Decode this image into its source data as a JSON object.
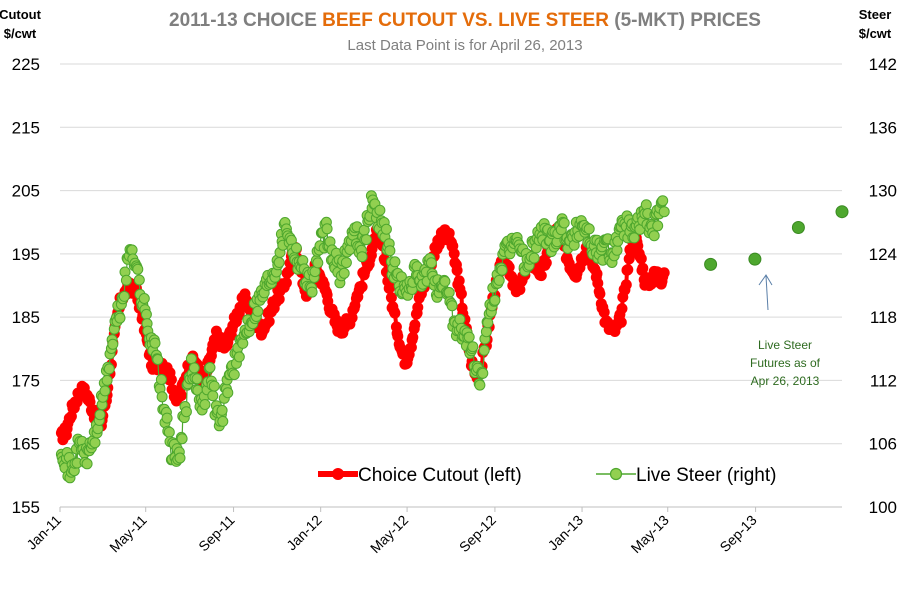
{
  "chart_data": {
    "type": "line",
    "title_parts": [
      {
        "text": "2011-13 CHOICE ",
        "color": "#7f7f7f"
      },
      {
        "text": "BEEF CUTOUT VS. LIVE STEER",
        "color": "#e46c0a"
      },
      {
        "text": " (5-MKT) PRICES",
        "color": "#7f7f7f"
      }
    ],
    "subtitle": "Last Data Point is for April 26, 2013",
    "ylabel_left_line1": "Cutout",
    "ylabel_left_line2": "$/cwt",
    "ylabel_right_line1": "Steer",
    "ylabel_right_line2": "$/cwt",
    "y_left": {
      "min": 155,
      "max": 225,
      "ticks": [
        "225",
        "215",
        "205",
        "195",
        "185",
        "175",
        "165",
        "155"
      ]
    },
    "y_right": {
      "min": 100,
      "max": 142,
      "ticks": [
        "142",
        "136",
        "130",
        "124",
        "118",
        "112",
        "106",
        "100"
      ]
    },
    "x_domain": {
      "start": "2011-01-01",
      "end": "2013-12-31"
    },
    "x_ticks": [
      {
        "label": "Jan-11",
        "date": "2011-01-01"
      },
      {
        "label": "May-11",
        "date": "2011-05-01"
      },
      {
        "label": "Sep-11",
        "date": "2011-09-01"
      },
      {
        "label": "Jan-12",
        "date": "2012-01-01"
      },
      {
        "label": "May-12",
        "date": "2012-05-01"
      },
      {
        "label": "Sep-12",
        "date": "2012-09-01"
      },
      {
        "label": "Jan-13",
        "date": "2013-01-01"
      },
      {
        "label": "May-13",
        "date": "2013-05-01"
      },
      {
        "label": "Sep-13",
        "date": "2013-09-01"
      }
    ],
    "grid": true,
    "legend_position": "bottom-center",
    "series": [
      {
        "name": "Choice Cutout (left)",
        "axis": "left",
        "color": "#ff0000",
        "points": [
          [
            "2011-01-03",
            166
          ],
          [
            "2011-01-10",
            167
          ],
          [
            "2011-01-17",
            170
          ],
          [
            "2011-01-24",
            172
          ],
          [
            "2011-01-31",
            173.5
          ],
          [
            "2011-02-07",
            173
          ],
          [
            "2011-02-14",
            171
          ],
          [
            "2011-02-21",
            169
          ],
          [
            "2011-02-28",
            168
          ],
          [
            "2011-03-07",
            172
          ],
          [
            "2011-03-14",
            178
          ],
          [
            "2011-03-21",
            184
          ],
          [
            "2011-03-28",
            188
          ],
          [
            "2011-04-04",
            189
          ],
          [
            "2011-04-11",
            190
          ],
          [
            "2011-04-18",
            189
          ],
          [
            "2011-04-25",
            186
          ],
          [
            "2011-05-02",
            182
          ],
          [
            "2011-05-09",
            178
          ],
          [
            "2011-05-16",
            177
          ],
          [
            "2011-05-23",
            178
          ],
          [
            "2011-05-30",
            177
          ],
          [
            "2011-06-06",
            175
          ],
          [
            "2011-06-13",
            172
          ],
          [
            "2011-06-20",
            173
          ],
          [
            "2011-06-27",
            176
          ],
          [
            "2011-07-04",
            178
          ],
          [
            "2011-07-11",
            178
          ],
          [
            "2011-07-18",
            175
          ],
          [
            "2011-07-25",
            176
          ],
          [
            "2011-08-01",
            179
          ],
          [
            "2011-08-08",
            182
          ],
          [
            "2011-08-15",
            181
          ],
          [
            "2011-08-22",
            180
          ],
          [
            "2011-08-29",
            183
          ],
          [
            "2011-09-05",
            185
          ],
          [
            "2011-09-12",
            187
          ],
          [
            "2011-09-19",
            188
          ],
          [
            "2011-09-26",
            186
          ],
          [
            "2011-10-03",
            184
          ],
          [
            "2011-10-10",
            183
          ],
          [
            "2011-10-17",
            184
          ],
          [
            "2011-10-24",
            186
          ],
          [
            "2011-10-31",
            188
          ],
          [
            "2011-11-07",
            189
          ],
          [
            "2011-11-14",
            191
          ],
          [
            "2011-11-21",
            194
          ],
          [
            "2011-11-28",
            196
          ],
          [
            "2011-12-05",
            192
          ],
          [
            "2011-12-12",
            189
          ],
          [
            "2011-12-19",
            191
          ],
          [
            "2011-12-26",
            193
          ],
          [
            "2012-01-02",
            191
          ],
          [
            "2012-01-09",
            189
          ],
          [
            "2012-01-16",
            186
          ],
          [
            "2012-01-23",
            184
          ],
          [
            "2012-01-30",
            183
          ],
          [
            "2012-02-06",
            184
          ],
          [
            "2012-02-13",
            185
          ],
          [
            "2012-02-20",
            188
          ],
          [
            "2012-02-27",
            190
          ],
          [
            "2012-03-05",
            193
          ],
          [
            "2012-03-12",
            195
          ],
          [
            "2012-03-19",
            198
          ],
          [
            "2012-03-26",
            197
          ],
          [
            "2012-04-02",
            193
          ],
          [
            "2012-04-09",
            188
          ],
          [
            "2012-04-16",
            184
          ],
          [
            "2012-04-23",
            180
          ],
          [
            "2012-04-30",
            178
          ],
          [
            "2012-05-07",
            181
          ],
          [
            "2012-05-14",
            185
          ],
          [
            "2012-05-21",
            189
          ],
          [
            "2012-05-28",
            191
          ],
          [
            "2012-06-04",
            194
          ],
          [
            "2012-06-11",
            196
          ],
          [
            "2012-06-18",
            198
          ],
          [
            "2012-06-25",
            198
          ],
          [
            "2012-07-02",
            197
          ],
          [
            "2012-07-09",
            193
          ],
          [
            "2012-07-16",
            188
          ],
          [
            "2012-07-23",
            183
          ],
          [
            "2012-07-30",
            178
          ],
          [
            "2012-08-06",
            176
          ],
          [
            "2012-08-13",
            177
          ],
          [
            "2012-08-20",
            181
          ],
          [
            "2012-08-27",
            186
          ],
          [
            "2012-09-03",
            190
          ],
          [
            "2012-09-10",
            193
          ],
          [
            "2012-09-17",
            194
          ],
          [
            "2012-09-24",
            192
          ],
          [
            "2012-10-01",
            189
          ],
          [
            "2012-10-08",
            190
          ],
          [
            "2012-10-15",
            193
          ],
          [
            "2012-10-22",
            194
          ],
          [
            "2012-10-29",
            193
          ],
          [
            "2012-11-05",
            192
          ],
          [
            "2012-11-12",
            194
          ],
          [
            "2012-11-19",
            197
          ],
          [
            "2012-11-26",
            199
          ],
          [
            "2012-12-03",
            197
          ],
          [
            "2012-12-10",
            195
          ],
          [
            "2012-12-17",
            193
          ],
          [
            "2012-12-24",
            192
          ],
          [
            "2012-12-31",
            194
          ],
          [
            "2013-01-07",
            196
          ],
          [
            "2013-01-14",
            194
          ],
          [
            "2013-01-21",
            192
          ],
          [
            "2013-01-28",
            188
          ],
          [
            "2013-02-04",
            184
          ],
          [
            "2013-02-11",
            183
          ],
          [
            "2013-02-18",
            183
          ],
          [
            "2013-02-25",
            185
          ],
          [
            "2013-03-04",
            191
          ],
          [
            "2013-03-11",
            196
          ],
          [
            "2013-03-18",
            197
          ],
          [
            "2013-03-25",
            194
          ],
          [
            "2013-04-01",
            190
          ],
          [
            "2013-04-08",
            191
          ],
          [
            "2013-04-15",
            192
          ],
          [
            "2013-04-22",
            191
          ],
          [
            "2013-04-26",
            192
          ]
        ]
      },
      {
        "name": "Live Steer (right)",
        "axis": "right",
        "color": "#92d050",
        "points": [
          [
            "2011-01-03",
            106
          ],
          [
            "2011-01-10",
            104.5
          ],
          [
            "2011-01-17",
            103
          ],
          [
            "2011-01-24",
            105
          ],
          [
            "2011-01-31",
            106
          ],
          [
            "2011-02-07",
            104.5
          ],
          [
            "2011-02-14",
            106
          ],
          [
            "2011-02-21",
            107
          ],
          [
            "2011-02-28",
            109.5
          ],
          [
            "2011-03-07",
            112
          ],
          [
            "2011-03-14",
            115
          ],
          [
            "2011-03-21",
            117.5
          ],
          [
            "2011-03-28",
            119
          ],
          [
            "2011-04-04",
            122
          ],
          [
            "2011-04-11",
            125
          ],
          [
            "2011-04-18",
            123
          ],
          [
            "2011-04-25",
            120
          ],
          [
            "2011-05-02",
            118
          ],
          [
            "2011-05-09",
            116
          ],
          [
            "2011-05-16",
            114.5
          ],
          [
            "2011-05-23",
            111
          ],
          [
            "2011-05-30",
            108
          ],
          [
            "2011-06-06",
            105.5
          ],
          [
            "2011-06-13",
            104.5
          ],
          [
            "2011-06-20",
            106
          ],
          [
            "2011-06-27",
            110
          ],
          [
            "2011-07-04",
            113
          ],
          [
            "2011-07-11",
            112
          ],
          [
            "2011-07-18",
            110
          ],
          [
            "2011-07-25",
            111
          ],
          [
            "2011-08-01",
            113
          ],
          [
            "2011-08-08",
            109
          ],
          [
            "2011-08-15",
            108
          ],
          [
            "2011-08-22",
            111
          ],
          [
            "2011-08-29",
            113
          ],
          [
            "2011-09-05",
            114
          ],
          [
            "2011-09-12",
            115
          ],
          [
            "2011-09-19",
            117
          ],
          [
            "2011-09-26",
            118
          ],
          [
            "2011-10-03",
            119
          ],
          [
            "2011-10-10",
            120
          ],
          [
            "2011-10-17",
            121
          ],
          [
            "2011-10-24",
            122
          ],
          [
            "2011-10-31",
            123
          ],
          [
            "2011-11-07",
            125
          ],
          [
            "2011-11-14",
            127
          ],
          [
            "2011-11-21",
            125
          ],
          [
            "2011-11-28",
            124
          ],
          [
            "2011-12-05",
            123
          ],
          [
            "2011-12-12",
            122
          ],
          [
            "2011-12-19",
            121
          ],
          [
            "2011-12-26",
            123
          ],
          [
            "2012-01-02",
            125
          ],
          [
            "2012-01-09",
            126
          ],
          [
            "2012-01-16",
            124
          ],
          [
            "2012-01-23",
            123
          ],
          [
            "2012-01-30",
            122
          ],
          [
            "2012-02-06",
            124
          ],
          [
            "2012-02-13",
            125.5
          ],
          [
            "2012-02-20",
            126
          ],
          [
            "2012-02-27",
            124.5
          ],
          [
            "2012-03-05",
            126
          ],
          [
            "2012-03-12",
            129
          ],
          [
            "2012-03-19",
            128
          ],
          [
            "2012-03-26",
            127
          ],
          [
            "2012-04-02",
            126
          ],
          [
            "2012-04-09",
            123
          ],
          [
            "2012-04-16",
            122
          ],
          [
            "2012-04-23",
            121
          ],
          [
            "2012-04-30",
            120
          ],
          [
            "2012-05-07",
            121.5
          ],
          [
            "2012-05-14",
            122
          ],
          [
            "2012-05-21",
            121
          ],
          [
            "2012-05-28",
            122
          ],
          [
            "2012-06-04",
            123
          ],
          [
            "2012-06-11",
            121
          ],
          [
            "2012-06-18",
            120
          ],
          [
            "2012-06-25",
            121
          ],
          [
            "2012-07-02",
            119
          ],
          [
            "2012-07-09",
            117
          ],
          [
            "2012-07-16",
            117
          ],
          [
            "2012-07-23",
            116
          ],
          [
            "2012-07-30",
            115
          ],
          [
            "2012-08-06",
            113
          ],
          [
            "2012-08-13",
            112
          ],
          [
            "2012-08-20",
            116
          ],
          [
            "2012-08-27",
            119
          ],
          [
            "2012-09-03",
            121
          ],
          [
            "2012-09-10",
            123
          ],
          [
            "2012-09-17",
            124
          ],
          [
            "2012-09-24",
            124.5
          ],
          [
            "2012-10-01",
            126
          ],
          [
            "2012-10-08",
            124
          ],
          [
            "2012-10-15",
            123
          ],
          [
            "2012-10-22",
            124
          ],
          [
            "2012-10-29",
            125
          ],
          [
            "2012-11-05",
            126
          ],
          [
            "2012-11-12",
            126
          ],
          [
            "2012-11-19",
            125
          ],
          [
            "2012-11-26",
            126
          ],
          [
            "2012-12-03",
            127
          ],
          [
            "2012-12-10",
            126
          ],
          [
            "2012-12-17",
            125
          ],
          [
            "2012-12-24",
            126
          ],
          [
            "2012-12-31",
            127
          ],
          [
            "2013-01-07",
            126.5
          ],
          [
            "2013-01-14",
            125
          ],
          [
            "2013-01-21",
            124.5
          ],
          [
            "2013-01-28",
            124
          ],
          [
            "2013-02-04",
            125
          ],
          [
            "2013-02-11",
            124
          ],
          [
            "2013-02-18",
            125
          ],
          [
            "2013-02-25",
            126
          ],
          [
            "2013-03-04",
            127
          ],
          [
            "2013-03-11",
            126
          ],
          [
            "2013-03-18",
            126
          ],
          [
            "2013-03-25",
            127.5
          ],
          [
            "2013-04-01",
            128
          ],
          [
            "2013-04-08",
            126
          ],
          [
            "2013-04-15",
            127
          ],
          [
            "2013-04-22",
            128
          ],
          [
            "2013-04-26",
            128
          ]
        ]
      },
      {
        "name": "Live Steer Futures",
        "axis": "right",
        "color": "#4ea72e",
        "points": [
          [
            "2013-06-30",
            123
          ],
          [
            "2013-08-31",
            123.5
          ],
          [
            "2013-10-31",
            126.5
          ],
          [
            "2013-12-31",
            128
          ]
        ]
      }
    ],
    "annotation": {
      "lines": [
        "Live Steer",
        "Futures as of",
        "Apr 26, 2013"
      ],
      "points_to": "2013-08-31"
    }
  }
}
